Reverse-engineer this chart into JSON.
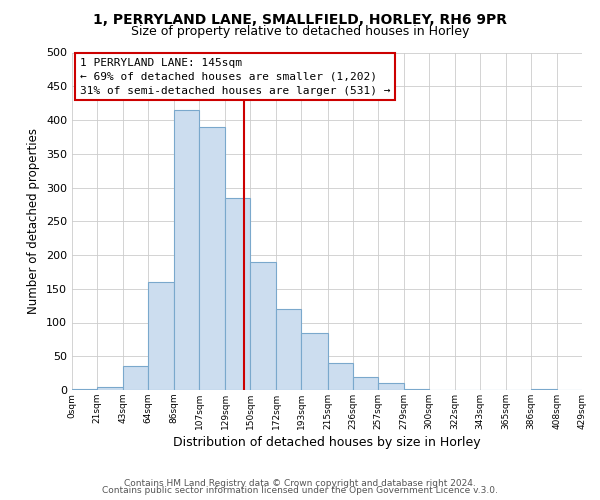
{
  "title": "1, PERRYLAND LANE, SMALLFIELD, HORLEY, RH6 9PR",
  "subtitle": "Size of property relative to detached houses in Horley",
  "xlabel": "Distribution of detached houses by size in Horley",
  "ylabel": "Number of detached properties",
  "bar_color": "#ccddef",
  "bar_edge_color": "#7aa8cc",
  "background_color": "#ffffff",
  "grid_color": "#cccccc",
  "vline_x": 145,
  "vline_color": "#cc0000",
  "bin_edges": [
    0,
    21,
    43,
    64,
    86,
    107,
    129,
    150,
    172,
    193,
    215,
    236,
    257,
    279,
    300,
    322,
    343,
    365,
    386,
    408,
    429
  ],
  "bin_counts": [
    2,
    5,
    35,
    160,
    415,
    390,
    285,
    190,
    120,
    85,
    40,
    20,
    10,
    2,
    0,
    0,
    0,
    0,
    2,
    0
  ],
  "tick_labels": [
    "0sqm",
    "21sqm",
    "43sqm",
    "64sqm",
    "86sqm",
    "107sqm",
    "129sqm",
    "150sqm",
    "172sqm",
    "193sqm",
    "215sqm",
    "236sqm",
    "257sqm",
    "279sqm",
    "300sqm",
    "322sqm",
    "343sqm",
    "365sqm",
    "386sqm",
    "408sqm",
    "429sqm"
  ],
  "annotation_box_text": [
    "1 PERRYLAND LANE: 145sqm",
    "← 69% of detached houses are smaller (1,202)",
    "31% of semi-detached houses are larger (531) →"
  ],
  "annotation_box_color": "#cc0000",
  "ylim": [
    0,
    500
  ],
  "yticks": [
    0,
    50,
    100,
    150,
    200,
    250,
    300,
    350,
    400,
    450,
    500
  ],
  "footer1": "Contains HM Land Registry data © Crown copyright and database right 2024.",
  "footer2": "Contains public sector information licensed under the Open Government Licence v.3.0."
}
